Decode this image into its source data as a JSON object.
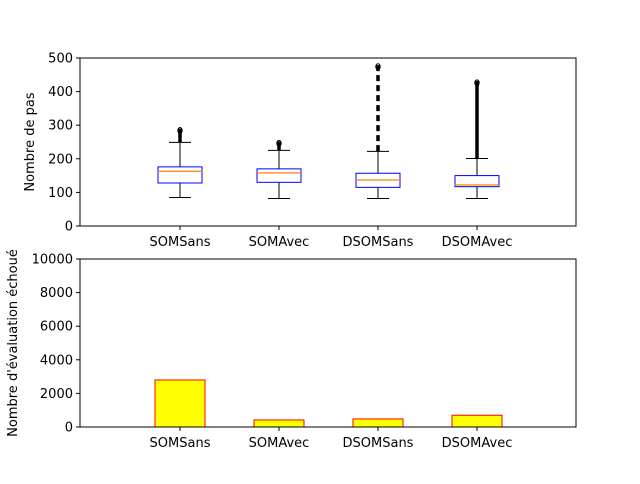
{
  "chart_data": [
    {
      "type": "box",
      "xlabel": "",
      "ylabel": "Nombre de pas",
      "ylim": [
        0,
        500
      ],
      "yticks": [
        0,
        100,
        200,
        300,
        400,
        500
      ],
      "grid": false,
      "categories": [
        "SOMSans",
        "SOMAvec",
        "DSOMSans",
        "DSOMAvec"
      ],
      "boxes": [
        {
          "whisker_low": 85,
          "q1": 128,
          "median": 163,
          "q3": 176,
          "whisker_high": 249,
          "outliers_min": 250,
          "outliers_max": 290
        },
        {
          "whisker_low": 82,
          "q1": 130,
          "median": 158,
          "q3": 170,
          "whisker_high": 225,
          "outliers_min": 226,
          "outliers_max": 252
        },
        {
          "whisker_low": 82,
          "q1": 115,
          "median": 137,
          "q3": 157,
          "whisker_high": 222,
          "outliers_min": 223,
          "outliers_max": 480
        },
        {
          "whisker_low": 82,
          "q1": 117,
          "median": 122,
          "q3": 150,
          "whisker_high": 201,
          "outliers_min": 202,
          "outliers_max": 432
        }
      ],
      "colors": {
        "box": "#0000ff",
        "median": "#ff7f0e",
        "whisker": "#000000"
      }
    },
    {
      "type": "bar",
      "xlabel": "",
      "ylabel": "Nombre d'évaluation échoué",
      "ylim": [
        0,
        10000
      ],
      "yticks": [
        0,
        2000,
        4000,
        6000,
        8000,
        10000
      ],
      "grid": false,
      "categories": [
        "SOMSans",
        "SOMAvec",
        "DSOMSans",
        "DSOMAvec"
      ],
      "values": [
        2800,
        420,
        480,
        700
      ],
      "colors": {
        "fill": "#ffff00",
        "edge": "#ff0000"
      }
    }
  ]
}
